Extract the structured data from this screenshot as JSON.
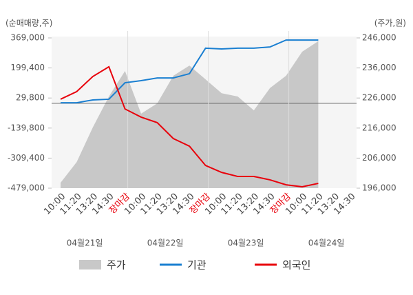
{
  "chart_data": {
    "type": "line",
    "y_axis_label": "(순매매량,주)",
    "y2_axis_label": "(주가,원)",
    "categories": [
      "10:00",
      "11:20",
      "13:20",
      "14:30",
      "장마감",
      "10:00",
      "11:20",
      "13:20",
      "14:30",
      "장마감",
      "10:00",
      "11:20",
      "13:20",
      "14:30",
      "장마감",
      "10:00",
      "11:20",
      "13:20",
      "14:30"
    ],
    "date_labels": [
      "04월21일",
      "04월22일",
      "04월23일",
      "04월24일"
    ],
    "close_color": "#e8000b",
    "ylim": [
      -479000,
      369000
    ],
    "yticks": [
      {
        "value": 369000,
        "label": "369,000"
      },
      {
        "value": 199400,
        "label": "199,400"
      },
      {
        "value": 29800,
        "label": "29,800"
      },
      {
        "value": -139800,
        "label": "-139,800"
      },
      {
        "value": -309400,
        "label": "-309,400"
      },
      {
        "value": -479000,
        "label": "-479,000"
      }
    ],
    "y2lim": [
      196000,
      246000
    ],
    "y2ticks": [
      {
        "value": 246000,
        "label": "246,000"
      },
      {
        "value": 236000,
        "label": "236,000"
      },
      {
        "value": 226000,
        "label": "226,000"
      },
      {
        "value": 216000,
        "label": "216,000"
      },
      {
        "value": 206000,
        "label": "206,000"
      },
      {
        "value": 196000,
        "label": "196,000"
      }
    ],
    "series": [
      {
        "name": "주가",
        "type": "area",
        "axis": "y2",
        "color": "#c8c8c8",
        "values": [
          197800,
          204700,
          216200,
          226500,
          235000,
          220800,
          224200,
          233400,
          236800,
          232200,
          227600,
          226500,
          221900,
          229300,
          233400,
          241400,
          244900,
          null,
          null
        ]
      },
      {
        "name": "기관",
        "type": "line",
        "color": "#1a7fd1",
        "values": [
          3000,
          3000,
          19000,
          23000,
          116000,
          128000,
          143000,
          143000,
          167000,
          311000,
          307000,
          311000,
          311000,
          318000,
          357000,
          357000,
          357000,
          null,
          null
        ]
      },
      {
        "name": "외국인",
        "type": "line",
        "color": "#e8000b",
        "values": [
          23000,
          66000,
          151000,
          206000,
          -32000,
          -78000,
          -109000,
          -199000,
          -242000,
          -351000,
          -390000,
          -413000,
          -413000,
          -432000,
          -460000,
          -471000,
          -452000,
          null,
          null
        ]
      }
    ]
  }
}
